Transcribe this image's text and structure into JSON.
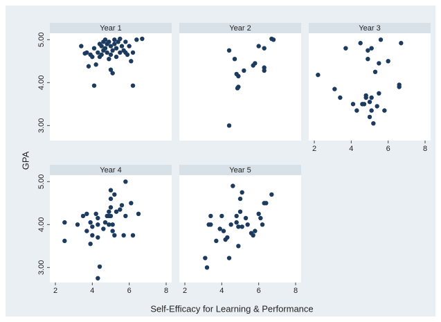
{
  "xlabel": "Self-Efficacy for Learning & Performance",
  "ylabel": "GPA",
  "chart_data": [
    {
      "type": "scatter",
      "title": "Year 1",
      "color": "#1c3b5e",
      "xlim": [
        1.7,
        8.3
      ],
      "ylim": [
        2.65,
        5.15
      ],
      "yticks": [
        {
          "value": 3,
          "label": "3.00"
        },
        {
          "value": 4,
          "label": "4.00"
        },
        {
          "value": 5,
          "label": "5.00"
        }
      ],
      "x": [
        3.4,
        3.7,
        3.8,
        3.9,
        4.0,
        4.1,
        4.2,
        4.3,
        4.4,
        4.5,
        4.5,
        4.6,
        4.6,
        4.7,
        4.7,
        4.8,
        4.8,
        4.9,
        4.9,
        5.0,
        5.0,
        5.0,
        5.1,
        5.1,
        5.2,
        5.2,
        5.3,
        5.3,
        5.4,
        5.5,
        5.5,
        5.6,
        5.7,
        5.8,
        5.9,
        6.0,
        6.1,
        6.2,
        6.2,
        6.4,
        6.7,
        4.1,
        3.6,
        4.4,
        5.8
      ],
      "y": [
        4.85,
        4.7,
        4.38,
        4.65,
        4.6,
        4.8,
        4.42,
        4.7,
        4.9,
        4.85,
        4.65,
        4.75,
        4.95,
        5.0,
        4.8,
        4.7,
        4.9,
        4.55,
        4.95,
        4.85,
        4.65,
        4.3,
        4.22,
        4.75,
        5.0,
        4.9,
        4.8,
        4.6,
        4.95,
        4.7,
        5.02,
        4.85,
        4.75,
        4.95,
        4.65,
        4.85,
        4.5,
        4.7,
        3.93,
        5.0,
        5.02,
        3.93,
        4.68,
        4.6,
        4.7
      ]
    },
    {
      "type": "scatter",
      "title": "Year 2",
      "color": "#1c3b5e",
      "xlim": [
        1.7,
        8.3
      ],
      "ylim": [
        2.65,
        5.15
      ],
      "x": [
        4.4,
        4.7,
        4.8,
        4.9,
        4.9,
        4.85,
        5.2,
        5.7,
        5.8,
        6.0,
        6.3,
        6.3,
        6.3,
        6.7,
        6.8,
        4.4
      ],
      "y": [
        4.75,
        4.55,
        4.2,
        4.15,
        3.9,
        3.87,
        4.28,
        4.4,
        4.45,
        4.85,
        4.8,
        4.35,
        4.28,
        5.02,
        5.0,
        3.0
      ]
    },
    {
      "type": "scatter",
      "title": "Year 3",
      "color": "#1c3b5e",
      "xlim": [
        1.7,
        8.3
      ],
      "ylim": [
        2.65,
        5.15
      ],
      "xticks": [
        2,
        4,
        6,
        8
      ],
      "x": [
        2.2,
        3.1,
        3.4,
        3.7,
        4.1,
        4.3,
        4.5,
        4.6,
        4.7,
        4.8,
        4.8,
        4.9,
        4.9,
        5.0,
        5.0,
        5.1,
        5.1,
        5.1,
        5.2,
        5.3,
        5.4,
        5.5,
        5.5,
        5.6,
        5.8,
        6.0,
        6.6,
        6.6,
        6.7
      ],
      "y": [
        4.18,
        3.85,
        3.65,
        4.8,
        3.5,
        3.35,
        4.92,
        3.5,
        3.5,
        3.7,
        3.65,
        4.55,
        4.75,
        3.55,
        3.2,
        3.35,
        3.65,
        4.8,
        3.05,
        4.25,
        3.45,
        4.45,
        3.75,
        5.0,
        3.35,
        4.5,
        3.95,
        3.9,
        4.92
      ]
    },
    {
      "type": "scatter",
      "title": "Year 4",
      "color": "#1c3b5e",
      "xlim": [
        1.7,
        8.3
      ],
      "ylim": [
        2.65,
        5.15
      ],
      "xticks": [
        2,
        4,
        6,
        8
      ],
      "yticks": [
        {
          "value": 3,
          "label": "3.00"
        },
        {
          "value": 4,
          "label": "4.00"
        },
        {
          "value": 5,
          "label": "5.00"
        }
      ],
      "x": [
        2.5,
        2.5,
        3.2,
        3.5,
        3.7,
        3.7,
        3.9,
        3.9,
        4.0,
        4.0,
        4.2,
        4.3,
        4.3,
        4.3,
        4.3,
        4.4,
        4.6,
        4.8,
        4.9,
        4.9,
        5.0,
        5.0,
        5.0,
        5.0,
        5.1,
        5.1,
        5.2,
        5.2,
        5.3,
        5.5,
        5.6,
        5.7,
        5.8,
        5.8,
        6.1,
        6.2,
        6.5,
        4.7,
        4.9
      ],
      "y": [
        4.05,
        3.62,
        4.0,
        4.2,
        4.25,
        3.85,
        3.55,
        4.05,
        3.75,
        3.95,
        4.25,
        4.15,
        3.7,
        4.0,
        2.75,
        3.02,
        3.9,
        4.2,
        4.0,
        4.2,
        4.8,
        4.6,
        4.4,
        4.2,
        4.0,
        3.85,
        4.7,
        3.75,
        4.3,
        4.35,
        4.45,
        3.75,
        5.0,
        4.2,
        4.5,
        3.75,
        4.25,
        4.05,
        4.3
      ]
    },
    {
      "type": "scatter",
      "title": "Year 5",
      "color": "#1c3b5e",
      "xlim": [
        1.7,
        8.3
      ],
      "ylim": [
        2.65,
        5.15
      ],
      "xticks": [
        2,
        4,
        6,
        8
      ],
      "x": [
        3.1,
        3.2,
        3.3,
        3.4,
        3.4,
        3.7,
        3.9,
        4.0,
        4.1,
        4.2,
        4.3,
        4.4,
        4.5,
        4.6,
        4.8,
        4.8,
        4.9,
        4.9,
        5.0,
        5.1,
        5.0,
        5.1,
        5.3,
        5.4,
        5.6,
        5.7,
        5.8,
        6.0,
        6.1,
        6.2,
        6.3,
        6.4,
        6.7
      ],
      "y": [
        3.22,
        3.0,
        4.0,
        4.2,
        4.0,
        3.62,
        3.9,
        4.2,
        3.85,
        3.65,
        3.7,
        3.22,
        4.0,
        4.9,
        4.2,
        4.05,
        3.95,
        3.5,
        4.6,
        4.75,
        4.3,
        3.95,
        4.15,
        4.0,
        3.8,
        3.75,
        3.85,
        4.25,
        4.15,
        4.0,
        4.5,
        4.5,
        4.7
      ]
    }
  ]
}
